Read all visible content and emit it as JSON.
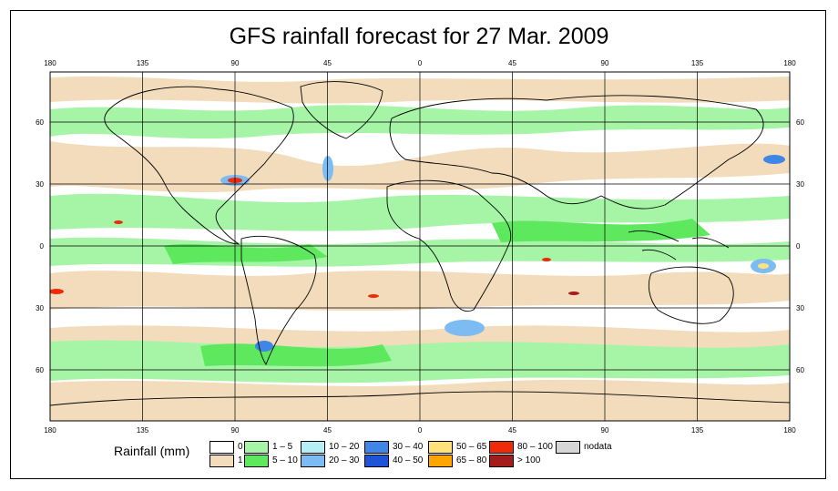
{
  "title": "GFS rainfall forecast for 27 Mar. 2009",
  "lon_ticks": [
    "180",
    "135",
    "90",
    "45",
    "0",
    "45",
    "90",
    "135",
    "180"
  ],
  "lat_ticks": [
    "60",
    "30",
    "0",
    "30",
    "60"
  ],
  "legend": {
    "title": "Rainfall (mm)",
    "items": [
      {
        "label": "0",
        "color": "#ffffff"
      },
      {
        "label": "1",
        "color": "#f2dcbc"
      },
      {
        "label": "1 – 5",
        "color": "#a6f4a6"
      },
      {
        "label": "5 – 10",
        "color": "#5ee85e"
      },
      {
        "label": "10 – 20",
        "color": "#b6eef6"
      },
      {
        "label": "20 – 30",
        "color": "#7cbcf2"
      },
      {
        "label": "30 – 40",
        "color": "#3f86e6"
      },
      {
        "label": "40 – 50",
        "color": "#1f54d8"
      },
      {
        "label": "50 – 65",
        "color": "#ffe37a"
      },
      {
        "label": "65 – 80",
        "color": "#ffa500"
      },
      {
        "label": "80 – 100",
        "color": "#ee2a0a"
      },
      {
        "label": "> 100",
        "color": "#a51c1c"
      },
      {
        "label": "nodata",
        "color": "#d6d6d6"
      }
    ]
  }
}
